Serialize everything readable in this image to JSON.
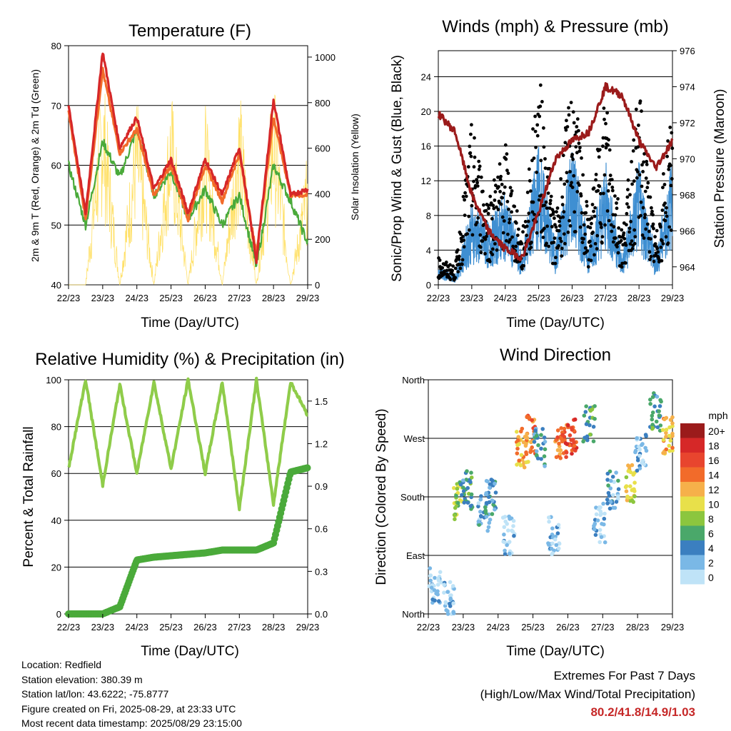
{
  "colors": {
    "temp_2m": "#d62728",
    "temp_9m": "#f26b2a",
    "dewpoint": "#4aaa3a",
    "solar": "#ffe066",
    "wind": "#3f8fd2",
    "gust": "#000000",
    "pressure": "#9b1b1b",
    "rh": "#8fcc4a",
    "precip": "#4aaa3a",
    "extremes": "#c62828"
  },
  "x_ticks": [
    "22/23",
    "23/23",
    "24/23",
    "25/23",
    "26/23",
    "27/23",
    "28/23",
    "29/23"
  ],
  "panels": {
    "temperature": {
      "title": "Temperature (F)",
      "xlabel": "Time (Day/UTC)",
      "ylabel_left": "2m & 9m T (Red, Orange) & 2m Td (Green)",
      "ylabel_right": "Solar Insolation (Yellow)",
      "yticks_left": [
        "40",
        "50",
        "60",
        "70",
        "80"
      ],
      "yticks_right": [
        "0",
        "200",
        "400",
        "600",
        "800",
        "1000"
      ]
    },
    "winds": {
      "title": "Winds (mph) & Pressure (mb)",
      "xlabel": "Time (Day/UTC)",
      "ylabel_left": "Sonic/Prop Wind & Gust (Blue, Black)",
      "ylabel_right": "Station Pressure (Maroon)",
      "yticks_left": [
        "0",
        "4",
        "8",
        "12",
        "16",
        "20",
        "24"
      ],
      "yticks_right": [
        "964",
        "966",
        "968",
        "970",
        "972",
        "974",
        "976"
      ]
    },
    "humidity": {
      "title": "Relative Humidity (%) & Precipitation (in)",
      "xlabel": "Time (Day/UTC)",
      "ylabel_left": "Percent & Total Rainfall",
      "yticks_left": [
        "0",
        "20",
        "40",
        "60",
        "80",
        "100"
      ],
      "yticks_right": [
        "0.0",
        "0.3",
        "0.6",
        "0.9",
        "1.2",
        "1.5"
      ]
    },
    "direction": {
      "title": "Wind Direction",
      "xlabel": "Time (Day/UTC)",
      "ylabel_left": "Direction (Colored By Speed)",
      "yticks_left": [
        "North",
        "East",
        "South",
        "West",
        "North"
      ],
      "legend_title": "mph",
      "legend_labels": [
        "20+",
        "18",
        "16",
        "14",
        "12",
        "10",
        "8",
        "6",
        "4",
        "2",
        "0"
      ],
      "legend_colors": [
        "#9b1b1b",
        "#d62828",
        "#e8452e",
        "#f26b2a",
        "#f6b04a",
        "#e8e04a",
        "#8cc63e",
        "#4aa86a",
        "#3b7fc0",
        "#7ab8e6",
        "#bfe3f7"
      ]
    }
  },
  "info": {
    "location": "Location: Redfield",
    "elevation": "Station elevation: 380.39 m",
    "latlon": "Station lat/lon: 43.6222; -75.8777",
    "created": "Figure created on Fri, 2025-08-29, at 23:33 UTC",
    "recent": "Most recent data timestamp: 2025/08/29 23:15:00"
  },
  "extremes": {
    "line1": "Extremes For Past 7 Days",
    "line2": "(High/Low/Max Wind/Total Precipitation)",
    "values": "80.2/41.8/14.9/1.03"
  },
  "chart_data": [
    {
      "type": "line",
      "title": "Temperature (F)",
      "xlabel": "Time (Day/UTC)",
      "ylabel": "2m & 9m T (Red, Orange) & 2m Td (Green)",
      "y2label": "Solar Insolation (Yellow)",
      "x": [
        0,
        0.5,
        1,
        1.5,
        2,
        2.5,
        3,
        3.5,
        4,
        4.5,
        5,
        5.5,
        6,
        6.5,
        7
      ],
      "xlim": [
        0,
        7
      ],
      "ylim": [
        40,
        80
      ],
      "y2lim": [
        0,
        1050
      ],
      "series": [
        {
          "values": [
            70,
            52,
            79,
            63,
            68,
            56,
            61,
            52,
            61,
            55,
            63,
            44,
            71,
            55,
            56
          ]
        },
        {
          "values": [
            69,
            51,
            76,
            62,
            66,
            55,
            60,
            51,
            60,
            54,
            62,
            45,
            68,
            55,
            55
          ]
        },
        {
          "values": [
            60,
            50,
            64,
            58,
            66,
            55,
            59,
            51,
            56,
            50,
            55,
            43,
            60,
            54,
            47
          ]
        },
        {
          "y_axis": "right",
          "values": [
            0,
            0,
            1000,
            0,
            850,
            0,
            900,
            0,
            820,
            0,
            900,
            0,
            950,
            0,
            600
          ]
        }
      ]
    },
    {
      "type": "line",
      "title": "Winds (mph) & Pressure (mb)",
      "xlabel": "Time (Day/UTC)",
      "ylabel": "Sonic/Prop Wind & Gust (Blue, Black)",
      "y2label": "Station Pressure (Maroon)",
      "x": [
        0,
        0.5,
        1,
        1.5,
        2,
        2.5,
        3,
        3.5,
        4,
        4.5,
        5,
        5.5,
        6,
        6.5,
        7
      ],
      "xlim": [
        0,
        7
      ],
      "ylim": [
        0,
        27
      ],
      "y2lim": [
        963,
        976
      ],
      "series": [
        {
          "values": [
            2,
            1,
            8,
            6,
            9,
            3,
            14,
            4,
            14,
            4,
            12,
            3,
            12,
            3,
            13
          ]
        },
        {
          "values": [
            3,
            2,
            18,
            10,
            16,
            5,
            24,
            7,
            24,
            7,
            22,
            6,
            22,
            5,
            21
          ]
        },
        {
          "y_axis": "right",
          "values": [
            972.5,
            971.5,
            968,
            966,
            965,
            964.5,
            967,
            970,
            971,
            971.5,
            974,
            973.5,
            971,
            969.5,
            971
          ]
        }
      ]
    },
    {
      "type": "line",
      "title": "Relative Humidity (%) & Precipitation (in)",
      "xlabel": "Time (Day/UTC)",
      "ylabel": "Percent & Total Rainfall",
      "x": [
        0,
        0.5,
        1,
        1.5,
        2,
        2.5,
        3,
        3.5,
        4,
        4.5,
        5,
        5.5,
        6,
        6.5,
        7
      ],
      "xlim": [
        0,
        7
      ],
      "ylim": [
        0,
        100
      ],
      "y2lim": [
        0,
        1.65
      ],
      "series": [
        {
          "values": [
            62,
            100,
            55,
            98,
            60,
            99,
            62,
            100,
            60,
            99,
            45,
            100,
            47,
            99,
            85
          ]
        },
        {
          "y_axis": "right",
          "values": [
            0,
            0,
            0,
            0.05,
            0.38,
            0.4,
            0.41,
            0.42,
            0.43,
            0.45,
            0.45,
            0.45,
            0.5,
            1.0,
            1.03
          ]
        }
      ]
    },
    {
      "type": "scatter",
      "title": "Wind Direction",
      "xlabel": "Time (Day/UTC)",
      "ylabel": "Direction (Colored By Speed)",
      "x": [
        0.2,
        0.6,
        0.9,
        1.1,
        1.6,
        1.8,
        2.3,
        2.7,
        2.9,
        3.2,
        3.6,
        3.8,
        4.1,
        4.6,
        4.9,
        5.3,
        5.8,
        6.1,
        6.5,
        6.9
      ],
      "y": [
        45,
        20,
        175,
        190,
        155,
        180,
        120,
        255,
        275,
        255,
        120,
        265,
        275,
        290,
        140,
        190,
        200,
        250,
        310,
        275
      ],
      "speed": [
        1,
        2,
        8,
        5,
        3,
        4,
        1,
        12,
        14,
        4,
        2,
        14,
        16,
        6,
        1,
        3,
        10,
        2,
        5,
        12
      ],
      "xlim": [
        0,
        7
      ],
      "ylim": [
        0,
        360
      ]
    }
  ]
}
